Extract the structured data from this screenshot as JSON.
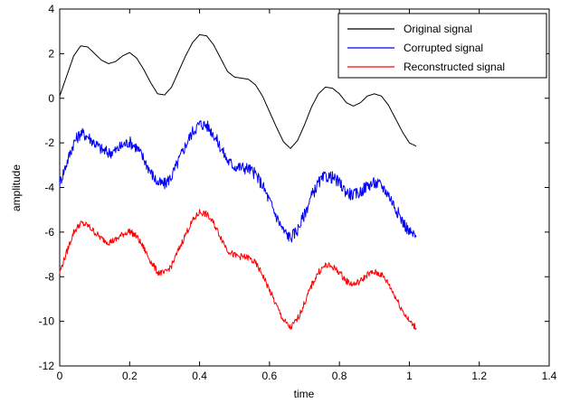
{
  "chart_data": {
    "type": "line",
    "title": "",
    "xlabel": "time",
    "ylabel": "amplitude",
    "xlim": [
      0,
      1.4
    ],
    "ylim": [
      -12,
      4
    ],
    "xticks": [
      "0",
      "0.2",
      "0.4",
      "0.6",
      "0.8",
      "1",
      "1.2",
      "1.4"
    ],
    "yticks": [
      "4",
      "2",
      "0",
      "-2",
      "-4",
      "-6",
      "-8",
      "-10",
      "-12"
    ],
    "grid": false,
    "legend_position": "top-right",
    "series": [
      {
        "name": "Original signal",
        "color": "#000000",
        "x": [
          0,
          0.02,
          0.04,
          0.06,
          0.08,
          0.1,
          0.12,
          0.14,
          0.16,
          0.18,
          0.2,
          0.22,
          0.24,
          0.26,
          0.28,
          0.3,
          0.32,
          0.34,
          0.36,
          0.38,
          0.4,
          0.42,
          0.44,
          0.46,
          0.48,
          0.5,
          0.52,
          0.54,
          0.56,
          0.58,
          0.6,
          0.62,
          0.64,
          0.66,
          0.68,
          0.7,
          0.72,
          0.74,
          0.76,
          0.78,
          0.8,
          0.82,
          0.84,
          0.86,
          0.88,
          0.9,
          0.92,
          0.94,
          0.96,
          0.98,
          1.0,
          1.02
        ],
        "y": [
          0.1,
          1.0,
          1.9,
          2.35,
          2.3,
          2.0,
          1.7,
          1.55,
          1.65,
          1.9,
          2.05,
          1.8,
          1.3,
          0.7,
          0.2,
          0.15,
          0.5,
          1.2,
          1.9,
          2.5,
          2.85,
          2.8,
          2.4,
          1.8,
          1.2,
          0.95,
          0.9,
          0.85,
          0.6,
          0.1,
          -0.6,
          -1.3,
          -1.95,
          -2.25,
          -1.9,
          -1.2,
          -0.4,
          0.2,
          0.5,
          0.45,
          0.2,
          -0.2,
          -0.35,
          -0.2,
          0.1,
          0.2,
          0.1,
          -0.3,
          -0.9,
          -1.5,
          -2.0,
          -2.15
        ]
      },
      {
        "name": "Corrupted signal",
        "color": "#0000ff",
        "x": [
          0,
          0.02,
          0.04,
          0.06,
          0.08,
          0.1,
          0.12,
          0.14,
          0.16,
          0.18,
          0.2,
          0.22,
          0.24,
          0.26,
          0.28,
          0.3,
          0.32,
          0.34,
          0.36,
          0.38,
          0.4,
          0.42,
          0.44,
          0.46,
          0.48,
          0.5,
          0.52,
          0.54,
          0.56,
          0.58,
          0.6,
          0.62,
          0.64,
          0.66,
          0.68,
          0.7,
          0.72,
          0.74,
          0.76,
          0.78,
          0.8,
          0.82,
          0.84,
          0.86,
          0.88,
          0.9,
          0.92,
          0.94,
          0.96,
          0.98,
          1.0,
          1.02
        ],
        "y": [
          -3.8,
          -2.9,
          -2.0,
          -1.55,
          -1.7,
          -2.0,
          -2.3,
          -2.45,
          -2.35,
          -2.1,
          -1.95,
          -2.2,
          -2.7,
          -3.3,
          -3.8,
          -3.85,
          -3.5,
          -2.8,
          -2.1,
          -1.5,
          -1.15,
          -1.2,
          -1.6,
          -2.2,
          -2.8,
          -3.05,
          -3.1,
          -3.15,
          -3.4,
          -3.9,
          -4.6,
          -5.3,
          -5.95,
          -6.25,
          -5.9,
          -5.2,
          -4.4,
          -3.8,
          -3.5,
          -3.55,
          -3.8,
          -4.2,
          -4.35,
          -4.2,
          -3.9,
          -3.8,
          -3.9,
          -4.3,
          -4.9,
          -5.5,
          -6.0,
          -6.2
        ]
      },
      {
        "name": "Reconstructed signal",
        "color": "#ff0000",
        "x": [
          0,
          0.02,
          0.04,
          0.06,
          0.08,
          0.1,
          0.12,
          0.14,
          0.16,
          0.18,
          0.2,
          0.22,
          0.24,
          0.26,
          0.28,
          0.3,
          0.32,
          0.34,
          0.36,
          0.38,
          0.4,
          0.42,
          0.44,
          0.46,
          0.48,
          0.5,
          0.52,
          0.54,
          0.56,
          0.58,
          0.6,
          0.62,
          0.64,
          0.66,
          0.68,
          0.7,
          0.72,
          0.74,
          0.76,
          0.78,
          0.8,
          0.82,
          0.84,
          0.86,
          0.88,
          0.9,
          0.92,
          0.94,
          0.96,
          0.98,
          1.0,
          1.02
        ],
        "y": [
          -7.8,
          -6.9,
          -6.0,
          -5.6,
          -5.7,
          -6.0,
          -6.3,
          -6.45,
          -6.35,
          -6.1,
          -5.95,
          -6.2,
          -6.7,
          -7.3,
          -7.8,
          -7.85,
          -7.5,
          -6.8,
          -6.1,
          -5.5,
          -5.1,
          -5.2,
          -5.6,
          -6.2,
          -6.8,
          -7.05,
          -7.1,
          -7.15,
          -7.4,
          -7.9,
          -8.6,
          -9.3,
          -9.95,
          -10.3,
          -9.9,
          -9.2,
          -8.4,
          -7.8,
          -7.5,
          -7.55,
          -7.8,
          -8.2,
          -8.35,
          -8.2,
          -7.9,
          -7.8,
          -7.9,
          -8.3,
          -8.9,
          -9.5,
          -10.0,
          -10.3
        ]
      }
    ]
  }
}
